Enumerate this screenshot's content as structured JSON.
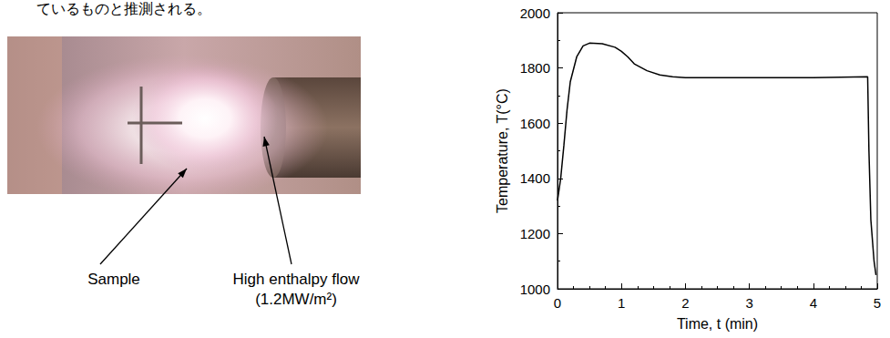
{
  "caption_fragment": "ているものと推測される。",
  "photo": {
    "labels": [
      {
        "lines": [
          "Sample"
        ]
      },
      {
        "lines": [
          "High enthalpy flow",
          "(1.2MW/m²)"
        ]
      }
    ]
  },
  "chart_data": {
    "type": "line",
    "x_label": "Time, t (min)",
    "y_label": "Temperature, T(°C)",
    "x": [
      0,
      0.05,
      0.1,
      0.15,
      0.2,
      0.3,
      0.4,
      0.5,
      0.7,
      0.9,
      1.0,
      1.1,
      1.2,
      1.4,
      1.6,
      1.8,
      2.0,
      3.0,
      4.0,
      4.85,
      4.87,
      4.9,
      4.95,
      4.98
    ],
    "values": [
      1320,
      1400,
      1520,
      1650,
      1750,
      1840,
      1880,
      1890,
      1888,
      1875,
      1860,
      1840,
      1815,
      1790,
      1775,
      1768,
      1765,
      1765,
      1765,
      1768,
      1500,
      1250,
      1100,
      1050
    ],
    "color": "#000000",
    "xlim": [
      0,
      5
    ],
    "xticks": [
      0,
      1,
      2,
      3,
      4,
      5
    ],
    "ylim": [
      1000,
      2000
    ],
    "yticks": [
      1000,
      1200,
      1400,
      1600,
      1800,
      2000
    ],
    "grid": false
  }
}
